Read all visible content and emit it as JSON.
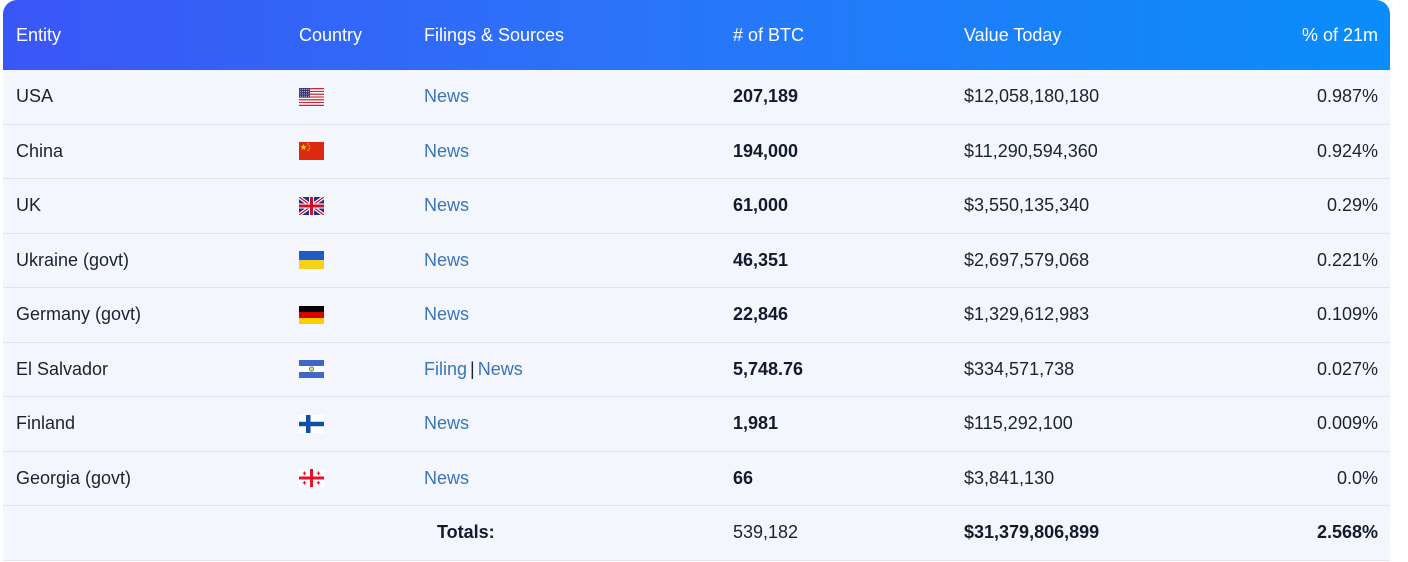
{
  "header": {
    "entity": "Entity",
    "country": "Country",
    "filings": "Filings & Sources",
    "btc": "# of BTC",
    "value": "Value Today",
    "pct": "% of 21m"
  },
  "rows": [
    {
      "entity": "USA",
      "flag": "us-flag-icon",
      "sources": [
        "News"
      ],
      "btc": "207,189",
      "value": "$12,058,180,180",
      "pct": "0.987%"
    },
    {
      "entity": "China",
      "flag": "china-flag-icon",
      "sources": [
        "News"
      ],
      "btc": "194,000",
      "value": "$11,290,594,360",
      "pct": "0.924%"
    },
    {
      "entity": "UK",
      "flag": "uk-flag-icon",
      "sources": [
        "News"
      ],
      "btc": "61,000",
      "value": "$3,550,135,340",
      "pct": "0.29%"
    },
    {
      "entity": "Ukraine (govt)",
      "flag": "ukraine-flag-icon",
      "sources": [
        "News"
      ],
      "btc": "46,351",
      "value": "$2,697,579,068",
      "pct": "0.221%"
    },
    {
      "entity": "Germany (govt)",
      "flag": "germany-flag-icon",
      "sources": [
        "News"
      ],
      "btc": "22,846",
      "value": "$1,329,612,983",
      "pct": "0.109%"
    },
    {
      "entity": "El Salvador",
      "flag": "el-salvador-flag-icon",
      "sources": [
        "Filing",
        "News"
      ],
      "btc": "5,748.76",
      "value": "$334,571,738",
      "pct": "0.027%"
    },
    {
      "entity": "Finland",
      "flag": "finland-flag-icon",
      "sources": [
        "News"
      ],
      "btc": "1,981",
      "value": "$115,292,100",
      "pct": "0.009%"
    },
    {
      "entity": "Georgia (govt)",
      "flag": "georgia-flag-icon",
      "sources": [
        "News"
      ],
      "btc": "66",
      "value": "$3,841,130",
      "pct": "0.0%"
    }
  ],
  "totals": {
    "label": "Totals:",
    "btc": "539,182",
    "value": "$31,379,806,899",
    "pct": "2.568%"
  },
  "source_separator": "|"
}
